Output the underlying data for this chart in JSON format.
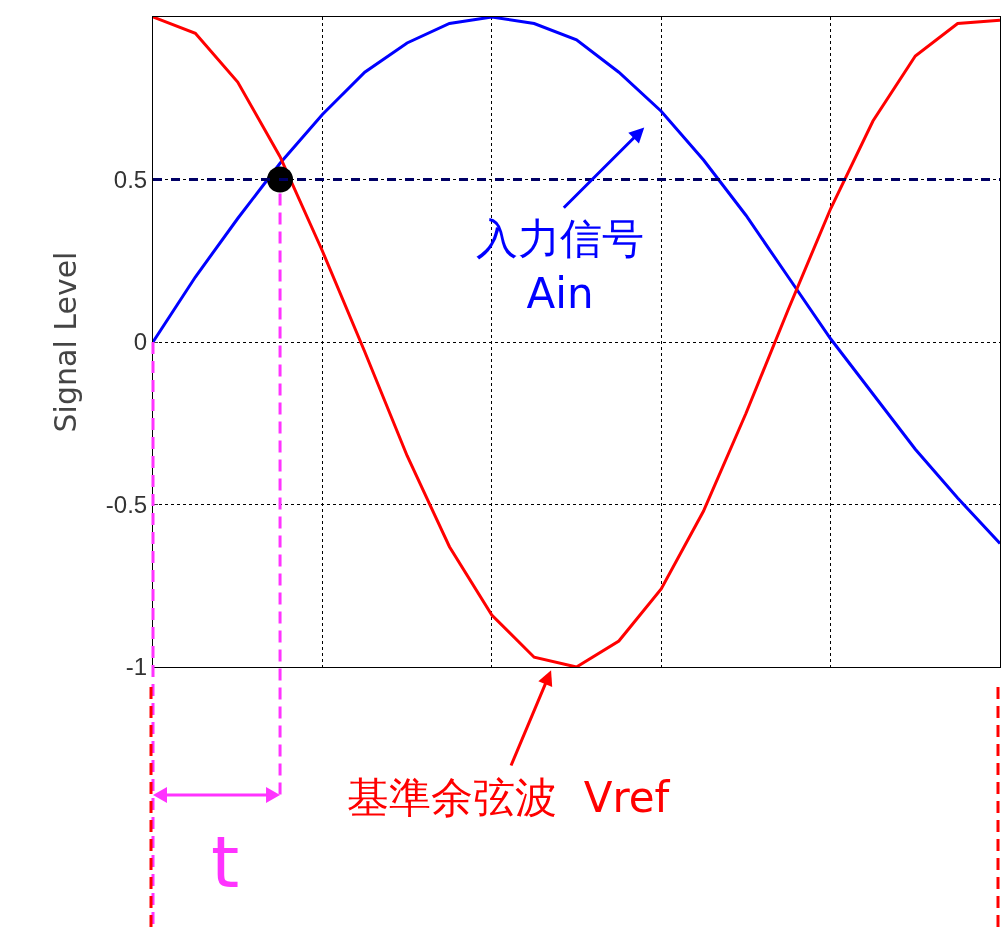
{
  "chart_data": {
    "type": "line",
    "ylabel": "Signal Level",
    "categories": [
      null,
      null,
      null,
      null,
      null,
      null,
      null,
      null,
      null,
      null,
      null,
      null,
      null,
      null,
      null,
      null,
      null,
      null,
      null,
      null,
      null
    ],
    "series": [
      {
        "color": "#0000ff",
        "values": [
          0,
          0.2,
          0.38,
          0.55,
          0.7,
          0.83,
          0.92,
          0.98,
          1,
          0.98,
          0.93,
          0.83,
          0.71,
          0.56,
          0.39,
          0.2,
          0.01,
          -0.16,
          -0.33,
          -0.48,
          -0.62
        ]
      },
      {
        "color": "#ff0000",
        "values": [
          1,
          0.95,
          0.8,
          0.57,
          0.28,
          -0.03,
          -0.35,
          -0.63,
          -0.84,
          -0.97,
          -1,
          -0.92,
          -0.76,
          -0.52,
          -0.22,
          0.1,
          0.41,
          0.68,
          0.88,
          0.98,
          0.99
        ]
      },
      {
        "type": "scatter",
        "marker": "circle",
        "color": "#000000",
        "values": [
          null,
          null,
          null,
          0.5,
          null,
          null,
          null,
          null,
          null,
          null,
          null,
          null,
          null,
          null,
          null,
          null,
          null,
          null,
          null,
          null,
          null
        ]
      }
    ],
    "ylim": [
      -1,
      1
    ],
    "yticks": [
      -1,
      -0.5,
      0,
      0.5
    ],
    "tick_labels": "y",
    "grid": true,
    "line_style": "solid",
    "ref_lines": [
      {
        "axis": "y",
        "value": 0.5,
        "color": "#000066",
        "line_style": "dashed"
      }
    ],
    "annotations": [
      "入力信号\nAin",
      "基準余弦波  Vref",
      "t"
    ]
  }
}
